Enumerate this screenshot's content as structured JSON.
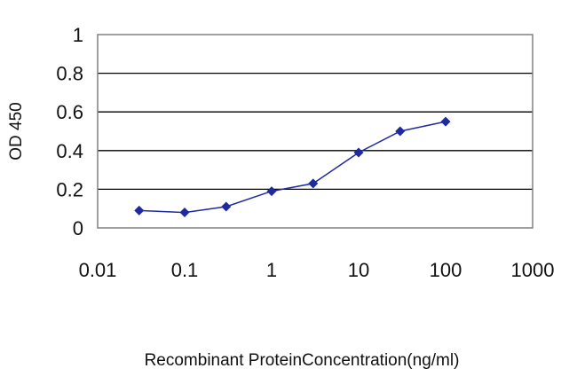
{
  "chart_data": {
    "type": "line",
    "title": "",
    "xlabel": "Recombinant ProteinConcentration(ng/ml)",
    "ylabel": "OD 450",
    "x_scale": "log",
    "xlim": [
      0.01,
      1000
    ],
    "ylim": [
      0,
      1
    ],
    "x_ticks": [
      "0.01",
      "0.1",
      "1",
      "10",
      "100",
      "1000"
    ],
    "y_ticks": [
      "0",
      "0.2",
      "0.4",
      "0.6",
      "0.8",
      "1"
    ],
    "grid": "horizontal",
    "legend": "none",
    "series": [
      {
        "x": [
          0.03,
          0.1,
          0.3,
          1,
          3,
          10,
          30,
          100
        ],
        "y": [
          0.09,
          0.08,
          0.11,
          0.19,
          0.23,
          0.39,
          0.5,
          0.55
        ],
        "color": "#1f2a9e"
      }
    ]
  }
}
